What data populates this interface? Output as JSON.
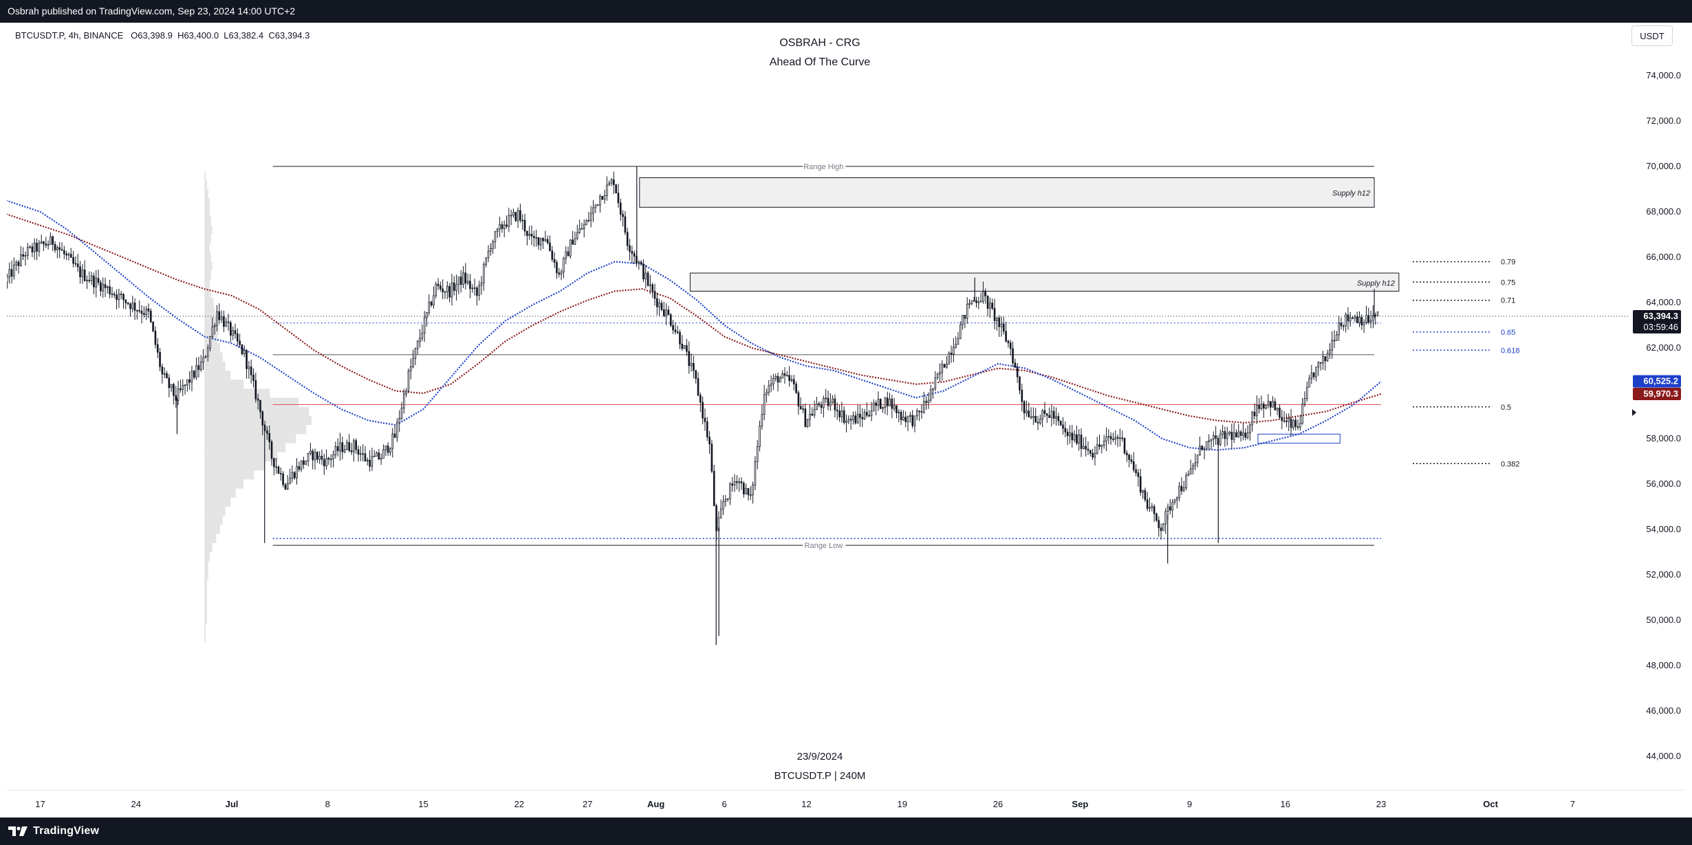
{
  "header": {
    "published_text": "Osbrah published on TradingView.com, Sep 23, 2024 14:00 UTC+2"
  },
  "footer": {
    "brand": "TradingView"
  },
  "legend": {
    "symbol_line": "BTCUSDT.P, 4h, BINANCE",
    "open": "O63,398.9",
    "high": "H63,400.0",
    "low": "L63,382.4",
    "close": "C63,394.3"
  },
  "title": {
    "line1": "OSBRAH - CRG",
    "line2": "Ahead Of The Curve"
  },
  "watermark": {
    "date": "23/9/2024",
    "symbol": "BTCUSDT.P | 240M"
  },
  "currency_button": "USDT",
  "colors": {
    "bg": "#ffffff",
    "candle": "#131722",
    "ema_blue": "#1e40c8",
    "ema_red": "#8b1a1a",
    "mid_line": "#e05050",
    "fib_blue": "#1e40c8",
    "profile": "#d9d9d9"
  },
  "chart_data": {
    "type": "candlestick",
    "symbol": "BTCUSDT.P",
    "timeframe": "4h",
    "ylim": [
      43000,
      75000
    ],
    "y_ticks": [
      "44,000.0",
      "46,000.0",
      "48,000.0",
      "50,000.0",
      "52,000.0",
      "54,000.0",
      "56,000.0",
      "58,000.0",
      "60,000.0",
      "62,000.0",
      "64,000.0",
      "66,000.0",
      "68,000.0",
      "70,000.0",
      "72,000.0",
      "74,000.0"
    ],
    "y_tick_values": [
      44000,
      46000,
      48000,
      50000,
      52000,
      54000,
      56000,
      58000,
      60000,
      62000,
      64000,
      66000,
      68000,
      70000,
      72000,
      74000
    ],
    "x_ticks": [
      {
        "label": "17",
        "day": -14
      },
      {
        "label": "24",
        "day": -7
      },
      {
        "label": "Jul",
        "day": 0,
        "bold": true
      },
      {
        "label": "8",
        "day": 7
      },
      {
        "label": "15",
        "day": 14
      },
      {
        "label": "22",
        "day": 21
      },
      {
        "label": "27",
        "day": 26
      },
      {
        "label": "Aug",
        "day": 31,
        "bold": true
      },
      {
        "label": "6",
        "day": 36
      },
      {
        "label": "12",
        "day": 42
      },
      {
        "label": "19",
        "day": 49
      },
      {
        "label": "26",
        "day": 56
      },
      {
        "label": "Sep",
        "day": 62,
        "bold": true
      },
      {
        "label": "9",
        "day": 70
      },
      {
        "label": "16",
        "day": 77
      },
      {
        "label": "23",
        "day": 84
      },
      {
        "label": "Oct",
        "day": 92,
        "bold": true
      },
      {
        "label": "7",
        "day": 98
      }
    ],
    "price_path": [
      [
        -16.5,
        64900
      ],
      [
        -15,
        66200
      ],
      [
        -13,
        66700
      ],
      [
        -11,
        65300
      ],
      [
        -9,
        64600
      ],
      [
        -7,
        63800
      ],
      [
        -6,
        63500
      ],
      [
        -5,
        60800
      ],
      [
        -4,
        59800
      ],
      [
        -3,
        60600
      ],
      [
        -2,
        61400
      ],
      [
        -1,
        63600
      ],
      [
        0,
        62700
      ],
      [
        1,
        61700
      ],
      [
        2,
        59600
      ],
      [
        3,
        57200
      ],
      [
        4,
        56000
      ],
      [
        5,
        56800
      ],
      [
        6,
        57300
      ],
      [
        7,
        57000
      ],
      [
        8,
        57600
      ],
      [
        9,
        57700
      ],
      [
        10,
        57000
      ],
      [
        11,
        57200
      ],
      [
        12,
        58100
      ],
      [
        13,
        60800
      ],
      [
        14,
        62800
      ],
      [
        15,
        64700
      ],
      [
        16,
        64500
      ],
      [
        17,
        65100
      ],
      [
        18,
        64300
      ],
      [
        19,
        66600
      ],
      [
        20,
        67500
      ],
      [
        21,
        67900
      ],
      [
        22,
        66700
      ],
      [
        23,
        66900
      ],
      [
        24,
        65200
      ],
      [
        25,
        66800
      ],
      [
        26,
        67500
      ],
      [
        27,
        68700
      ],
      [
        28,
        69400
      ],
      [
        29,
        66700
      ],
      [
        30,
        65500
      ],
      [
        31,
        64200
      ],
      [
        32,
        63400
      ],
      [
        33,
        62200
      ],
      [
        34,
        60500
      ],
      [
        35,
        57700
      ],
      [
        35.5,
        53800
      ],
      [
        36,
        55200
      ],
      [
        37,
        56300
      ],
      [
        38,
        55300
      ],
      [
        39,
        60100
      ],
      [
        40,
        60700
      ],
      [
        41,
        60500
      ],
      [
        42,
        58800
      ],
      [
        43,
        59500
      ],
      [
        44,
        59600
      ],
      [
        45,
        58800
      ],
      [
        46,
        58900
      ],
      [
        47,
        59400
      ],
      [
        48,
        59700
      ],
      [
        49,
        59000
      ],
      [
        50,
        58800
      ],
      [
        51,
        59800
      ],
      [
        52,
        61100
      ],
      [
        53,
        62400
      ],
      [
        54,
        64000
      ],
      [
        55,
        64300
      ],
      [
        56,
        63200
      ],
      [
        57,
        62000
      ],
      [
        58,
        59300
      ],
      [
        59,
        58900
      ],
      [
        60,
        59100
      ],
      [
        61,
        58200
      ],
      [
        62,
        57900
      ],
      [
        63,
        57400
      ],
      [
        64,
        57900
      ],
      [
        65,
        58100
      ],
      [
        66,
        56700
      ],
      [
        67,
        55100
      ],
      [
        68,
        54100
      ],
      [
        69,
        55500
      ],
      [
        70,
        56300
      ],
      [
        71,
        57700
      ],
      [
        72,
        57900
      ],
      [
        73,
        58200
      ],
      [
        74,
        58000
      ],
      [
        75,
        59500
      ],
      [
        76,
        59600
      ],
      [
        77,
        58700
      ],
      [
        78,
        58500
      ],
      [
        79,
        60800
      ],
      [
        80,
        61500
      ],
      [
        81,
        63100
      ],
      [
        82,
        63400
      ],
      [
        83,
        63200
      ],
      [
        83.8,
        63394.3
      ]
    ],
    "wicks": [
      {
        "day": -4,
        "low": 58200
      },
      {
        "day": 2.4,
        "low": 53400
      },
      {
        "day": 29.6,
        "high": 70000
      },
      {
        "day": 35.4,
        "low": 48900
      },
      {
        "day": 35.6,
        "low": 49300
      },
      {
        "day": 54.3,
        "high": 65100
      },
      {
        "day": 68.4,
        "low": 52500
      },
      {
        "day": 72.1,
        "low": 53400
      },
      {
        "day": 83.5,
        "high": 64600
      }
    ],
    "ema_blue": [
      [
        -16.5,
        68500
      ],
      [
        -14,
        68000
      ],
      [
        -12,
        67200
      ],
      [
        -10,
        66200
      ],
      [
        -8,
        65200
      ],
      [
        -6,
        64200
      ],
      [
        -4,
        63300
      ],
      [
        -2,
        62500
      ],
      [
        0,
        62200
      ],
      [
        2,
        61600
      ],
      [
        4,
        60800
      ],
      [
        6,
        60000
      ],
      [
        8,
        59300
      ],
      [
        10,
        58800
      ],
      [
        12,
        58600
      ],
      [
        14,
        59300
      ],
      [
        16,
        60700
      ],
      [
        18,
        62100
      ],
      [
        20,
        63200
      ],
      [
        22,
        63900
      ],
      [
        24,
        64500
      ],
      [
        26,
        65300
      ],
      [
        28,
        65800
      ],
      [
        30,
        65700
      ],
      [
        32,
        65000
      ],
      [
        34,
        64100
      ],
      [
        36,
        63000
      ],
      [
        38,
        62200
      ],
      [
        40,
        61600
      ],
      [
        42,
        61200
      ],
      [
        44,
        61000
      ],
      [
        46,
        60600
      ],
      [
        48,
        60200
      ],
      [
        50,
        59800
      ],
      [
        52,
        60100
      ],
      [
        54,
        60700
      ],
      [
        56,
        61300
      ],
      [
        58,
        61100
      ],
      [
        60,
        60600
      ],
      [
        62,
        60000
      ],
      [
        64,
        59400
      ],
      [
        66,
        58800
      ],
      [
        68,
        58000
      ],
      [
        70,
        57600
      ],
      [
        72,
        57500
      ],
      [
        74,
        57600
      ],
      [
        76,
        57900
      ],
      [
        78,
        58200
      ],
      [
        80,
        58800
      ],
      [
        82,
        59500
      ],
      [
        84,
        60525.2
      ]
    ],
    "ema_red": [
      [
        -16.5,
        67900
      ],
      [
        -14,
        67400
      ],
      [
        -12,
        67000
      ],
      [
        -10,
        66500
      ],
      [
        -8,
        66000
      ],
      [
        -6,
        65500
      ],
      [
        -4,
        65000
      ],
      [
        -2,
        64600
      ],
      [
        0,
        64300
      ],
      [
        2,
        63700
      ],
      [
        4,
        62800
      ],
      [
        6,
        61900
      ],
      [
        8,
        61200
      ],
      [
        10,
        60600
      ],
      [
        12,
        60100
      ],
      [
        14,
        60000
      ],
      [
        16,
        60400
      ],
      [
        18,
        61300
      ],
      [
        20,
        62300
      ],
      [
        22,
        63000
      ],
      [
        24,
        63600
      ],
      [
        26,
        64100
      ],
      [
        28,
        64500
      ],
      [
        30,
        64600
      ],
      [
        32,
        64200
      ],
      [
        34,
        63400
      ],
      [
        36,
        62500
      ],
      [
        38,
        62000
      ],
      [
        40,
        61700
      ],
      [
        42,
        61400
      ],
      [
        44,
        61100
      ],
      [
        46,
        60800
      ],
      [
        48,
        60600
      ],
      [
        50,
        60400
      ],
      [
        52,
        60500
      ],
      [
        54,
        60800
      ],
      [
        56,
        61100
      ],
      [
        58,
        61000
      ],
      [
        60,
        60700
      ],
      [
        62,
        60300
      ],
      [
        64,
        59900
      ],
      [
        66,
        59600
      ],
      [
        68,
        59300
      ],
      [
        70,
        59000
      ],
      [
        72,
        58800
      ],
      [
        74,
        58700
      ],
      [
        76,
        58800
      ],
      [
        78,
        59000
      ],
      [
        80,
        59200
      ],
      [
        82,
        59600
      ],
      [
        84,
        59970.3
      ]
    ],
    "annotations": {
      "range_high": {
        "label": "Range High",
        "price": 70000,
        "from_day": 3,
        "to_day": 83.5
      },
      "range_low": {
        "label": "Range Low",
        "price": 53300,
        "from_day": 3,
        "to_day": 83.5
      },
      "range_low_dotted": {
        "price": 53600
      },
      "supply_zones": [
        {
          "label": "Supply h12",
          "from_day": 29.8,
          "to_day": 83.5,
          "top": 69500,
          "bottom": 68200
        },
        {
          "label": "Supply h12",
          "from_day": 33.5,
          "to_day": 85.3,
          "top": 65300,
          "bottom": 64500
        }
      ],
      "hlines": [
        {
          "price": 61700,
          "style": "solid",
          "color": "#555555",
          "from_day": 3,
          "to_day": 83.5
        },
        {
          "price": 63100,
          "style": "dotted",
          "color": "#1e40c8",
          "from_day": 3,
          "to_day": 84
        },
        {
          "price": 59500,
          "style": "solid",
          "color": "#e05050",
          "from_day": 3,
          "to_day": 84
        }
      ],
      "demand_box": {
        "from_day": 75,
        "to_day": 81,
        "top": 58200,
        "bottom": 57800
      },
      "fib_levels": [
        {
          "label": "0.79",
          "price": 65800,
          "color": "#131722"
        },
        {
          "label": "0.75",
          "price": 64900,
          "color": "#131722"
        },
        {
          "label": "0.71",
          "price": 64100,
          "color": "#131722"
        },
        {
          "label": "0.65",
          "price": 62700,
          "color": "#1e40c8"
        },
        {
          "label": "0.618",
          "price": 61900,
          "color": "#1e40c8"
        },
        {
          "label": "0.5",
          "price": 59400,
          "color": "#131722"
        },
        {
          "label": "0.382",
          "price": 56900,
          "color": "#131722"
        }
      ]
    },
    "price_labels": [
      {
        "text": "63,394.3",
        "sub": "03:59:46",
        "price": 63394.3,
        "bg": "#131722"
      },
      {
        "text": "60,525.2",
        "price": 60525.2,
        "bg": "#1e40c8"
      },
      {
        "text": "59,970.3",
        "price": 59970.3,
        "bg": "#8b1a1a"
      }
    ],
    "volume_profile": [
      [
        69600,
        1
      ],
      [
        69200,
        2
      ],
      [
        68800,
        3
      ],
      [
        68400,
        4
      ],
      [
        68000,
        4
      ],
      [
        67600,
        5
      ],
      [
        67200,
        6
      ],
      [
        66800,
        5
      ],
      [
        66400,
        4
      ],
      [
        66000,
        5
      ],
      [
        65600,
        6
      ],
      [
        65200,
        5
      ],
      [
        64800,
        4
      ],
      [
        64400,
        5
      ],
      [
        64000,
        7
      ],
      [
        63600,
        8
      ],
      [
        63200,
        10
      ],
      [
        62800,
        11
      ],
      [
        62400,
        10
      ],
      [
        62000,
        12
      ],
      [
        61600,
        14
      ],
      [
        61200,
        16
      ],
      [
        60800,
        20
      ],
      [
        60400,
        30
      ],
      [
        60000,
        50
      ],
      [
        59600,
        72
      ],
      [
        59200,
        80
      ],
      [
        58800,
        82
      ],
      [
        58400,
        78
      ],
      [
        58000,
        70
      ],
      [
        57600,
        62
      ],
      [
        57200,
        56
      ],
      [
        56800,
        46
      ],
      [
        56400,
        38
      ],
      [
        56000,
        30
      ],
      [
        55600,
        24
      ],
      [
        55200,
        20
      ],
      [
        54800,
        16
      ],
      [
        54400,
        14
      ],
      [
        54000,
        12
      ],
      [
        53600,
        9
      ],
      [
        53200,
        6
      ],
      [
        52800,
        4
      ],
      [
        52400,
        3
      ],
      [
        52000,
        3
      ],
      [
        51600,
        2
      ],
      [
        51200,
        2
      ],
      [
        50800,
        2
      ],
      [
        50400,
        2
      ],
      [
        50000,
        2
      ],
      [
        49600,
        1
      ],
      [
        49200,
        1
      ]
    ]
  }
}
